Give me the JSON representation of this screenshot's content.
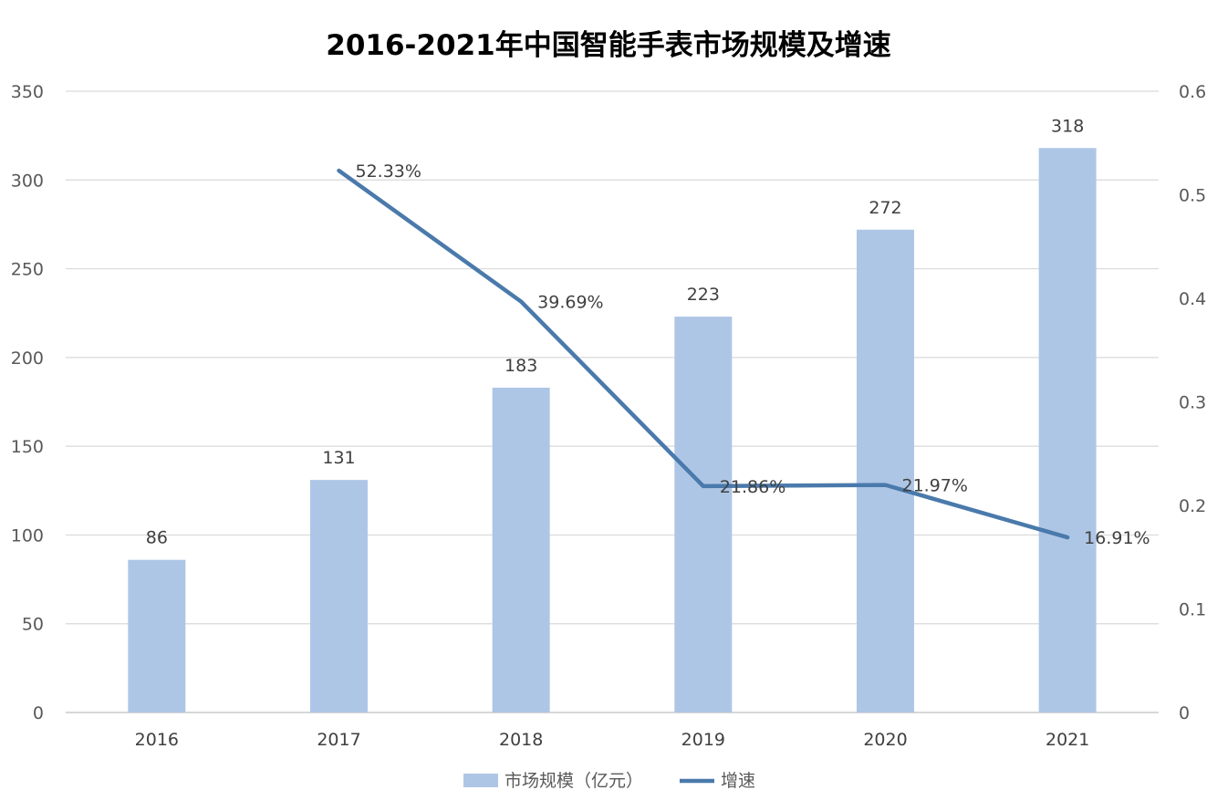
{
  "chart_data": {
    "type": "bar",
    "title": "2016-2021年中国智能手表市场规模及增速",
    "categories": [
      "2016",
      "2017",
      "2018",
      "2019",
      "2020",
      "2021"
    ],
    "series": [
      {
        "name": "市场规模（亿元）",
        "type": "bar",
        "axis": "left",
        "values": [
          86,
          131,
          183,
          223,
          272,
          318
        ],
        "labels": [
          "86",
          "131",
          "183",
          "223",
          "272",
          "318"
        ],
        "color": "#aec6e6"
      },
      {
        "name": "增速",
        "type": "line",
        "axis": "right",
        "values": [
          null,
          0.5233,
          0.3969,
          0.2186,
          0.2197,
          0.1691
        ],
        "labels": [
          "",
          "52.33%",
          "39.69%",
          "21.86%",
          "21.97%",
          "16.91%"
        ],
        "color": "#4a7aab"
      }
    ],
    "y_left": {
      "min": 0,
      "max": 350,
      "ticks": [
        "0",
        "50",
        "100",
        "150",
        "200",
        "250",
        "300",
        "350"
      ]
    },
    "y_right": {
      "min": 0,
      "max": 0.6,
      "ticks": [
        "0",
        "0.1",
        "0.2",
        "0.3",
        "0.4",
        "0.5",
        "0.6"
      ]
    },
    "grid": true,
    "legend": "bottom"
  }
}
